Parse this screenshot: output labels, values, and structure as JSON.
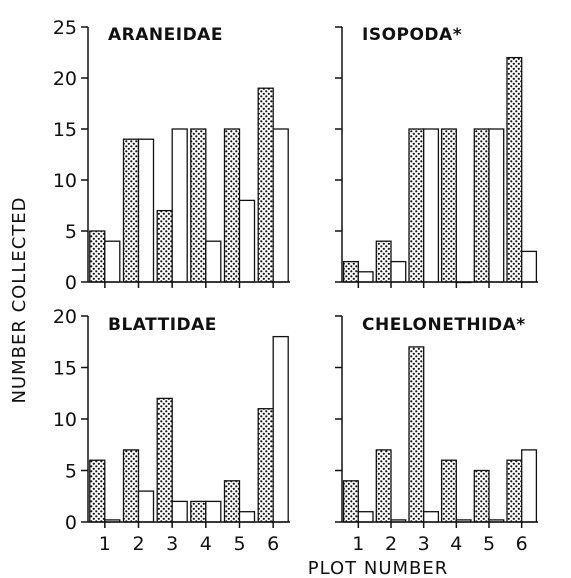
{
  "chart_data": [
    {
      "type": "bar",
      "title": "ARANEIDAE",
      "categories": [
        "1",
        "2",
        "3",
        "4",
        "5",
        "6"
      ],
      "series": [
        {
          "values": [
            5,
            14,
            7,
            15,
            15,
            19
          ]
        },
        {
          "values": [
            4,
            14,
            15,
            4,
            8,
            15
          ]
        }
      ],
      "ylim": [
        0,
        25
      ],
      "yticks": [
        "0",
        "5",
        "10",
        "15",
        "20",
        "25"
      ]
    },
    {
      "type": "bar",
      "title": "ISOPODA*",
      "categories": [
        "1",
        "2",
        "3",
        "4",
        "5",
        "6"
      ],
      "series": [
        {
          "values": [
            2,
            4,
            15,
            15,
            15,
            22
          ]
        },
        {
          "values": [
            1,
            2,
            15,
            0,
            15,
            3
          ]
        }
      ],
      "ylim": [
        0,
        25
      ]
    },
    {
      "type": "bar",
      "title": "BLATTIDAE",
      "categories": [
        "1",
        "2",
        "3",
        "4",
        "5",
        "6"
      ],
      "series": [
        {
          "values": [
            6,
            7,
            12,
            2,
            4,
            11
          ]
        },
        {
          "values": [
            0.2,
            3,
            2,
            2,
            1,
            18
          ]
        }
      ],
      "ylim": [
        0,
        20
      ],
      "yticks": [
        "0",
        "5",
        "10",
        "15",
        "20"
      ]
    },
    {
      "type": "bar",
      "title": "CHELONETHIDA*",
      "categories": [
        "1",
        "2",
        "3",
        "4",
        "5",
        "6"
      ],
      "series": [
        {
          "values": [
            4,
            7,
            17,
            6,
            5,
            6
          ]
        },
        {
          "values": [
            1,
            0.2,
            1,
            0.2,
            0.2,
            7
          ]
        }
      ],
      "ylim": [
        0,
        20
      ]
    }
  ],
  "axes": {
    "xlabel": "PLOT NUMBER",
    "ylabel": "NUMBER COLLECTED",
    "xticks": [
      "1",
      "2",
      "3",
      "4",
      "5",
      "6"
    ]
  }
}
